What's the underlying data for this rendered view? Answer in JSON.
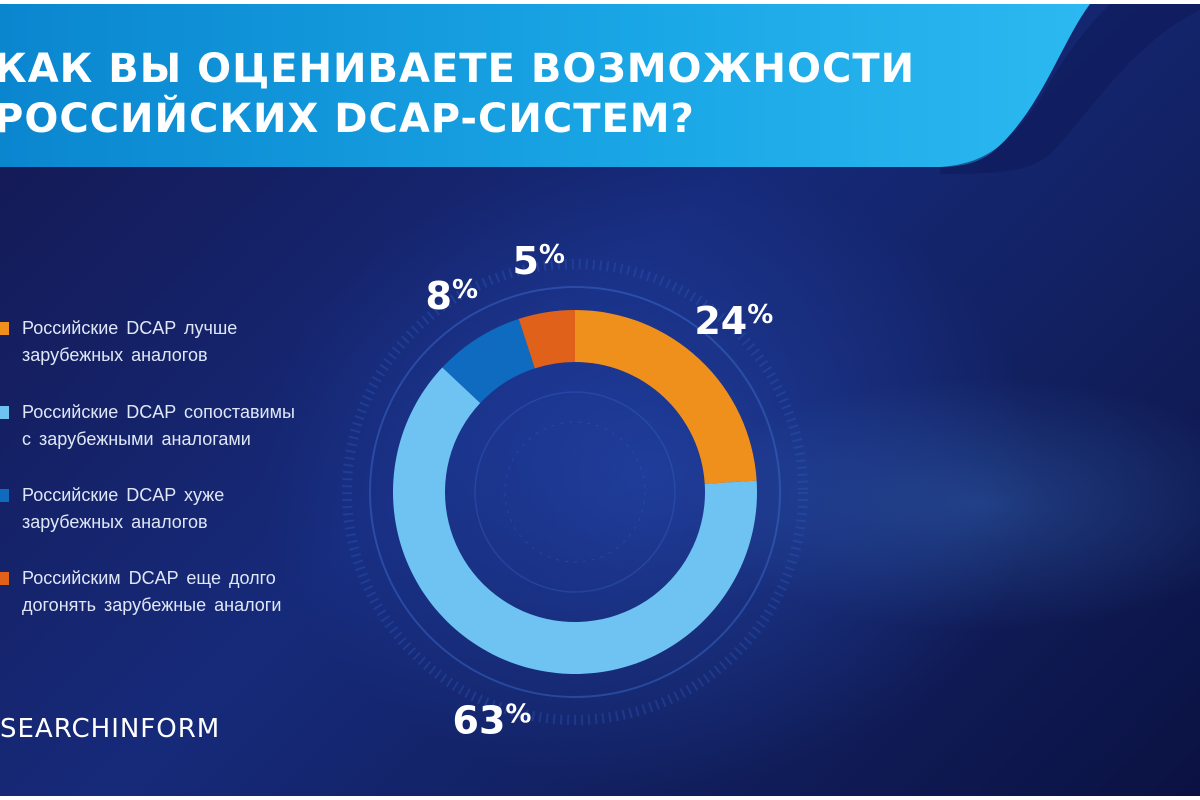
{
  "title_lines": [
    "КАК ВЫ ОЦЕНИВАЕТЕ ВОЗМОЖНОСТИ",
    "РОССИЙСКИХ DCAP-СИСТЕМ?"
  ],
  "brand": "SEARCHINFORM",
  "colors": {
    "orange": "#f0901c",
    "light_blue": "#6ec3f3",
    "blue": "#0e6bbf",
    "dark_orange": "#e0621a",
    "header_band": "#1aa7e6"
  },
  "chart_data": {
    "type": "pie",
    "style": "donut",
    "title": "КАК ВЫ ОЦЕНИВАЕТЕ ВОЗМОЖНОСТИ РОССИЙСКИХ DCAP-СИСТЕМ?",
    "legend_position": "left",
    "slices": [
      {
        "label": "Российские DCAP лучше зарубежных аналогов",
        "value": 24,
        "display": "24%",
        "color": "#f0901c"
      },
      {
        "label": "Российские DCAP сопоставимы с зарубежными аналогами",
        "value": 63,
        "display": "63%",
        "color": "#6ec3f3"
      },
      {
        "label": "Российские DCAP хуже зарубежных аналогов",
        "value": 8,
        "display": "8%",
        "color": "#0e6bbf"
      },
      {
        "label": "Российским DCAP еще долго догонять зарубежные аналоги",
        "value": 5,
        "display": "5%",
        "color": "#e0621a"
      }
    ]
  },
  "legend": [
    {
      "line1": "Российские DCAP лучше",
      "line2": "зарубежных аналогов"
    },
    {
      "line1": "Российские DCAP сопоставимы",
      "line2": "с зарубежными аналогами"
    },
    {
      "line1": "Российские DCAP хуже",
      "line2": "зарубежных аналогов"
    },
    {
      "line1": "Российским DCAP еще долго",
      "line2": "догонять зарубежные аналоги"
    }
  ]
}
